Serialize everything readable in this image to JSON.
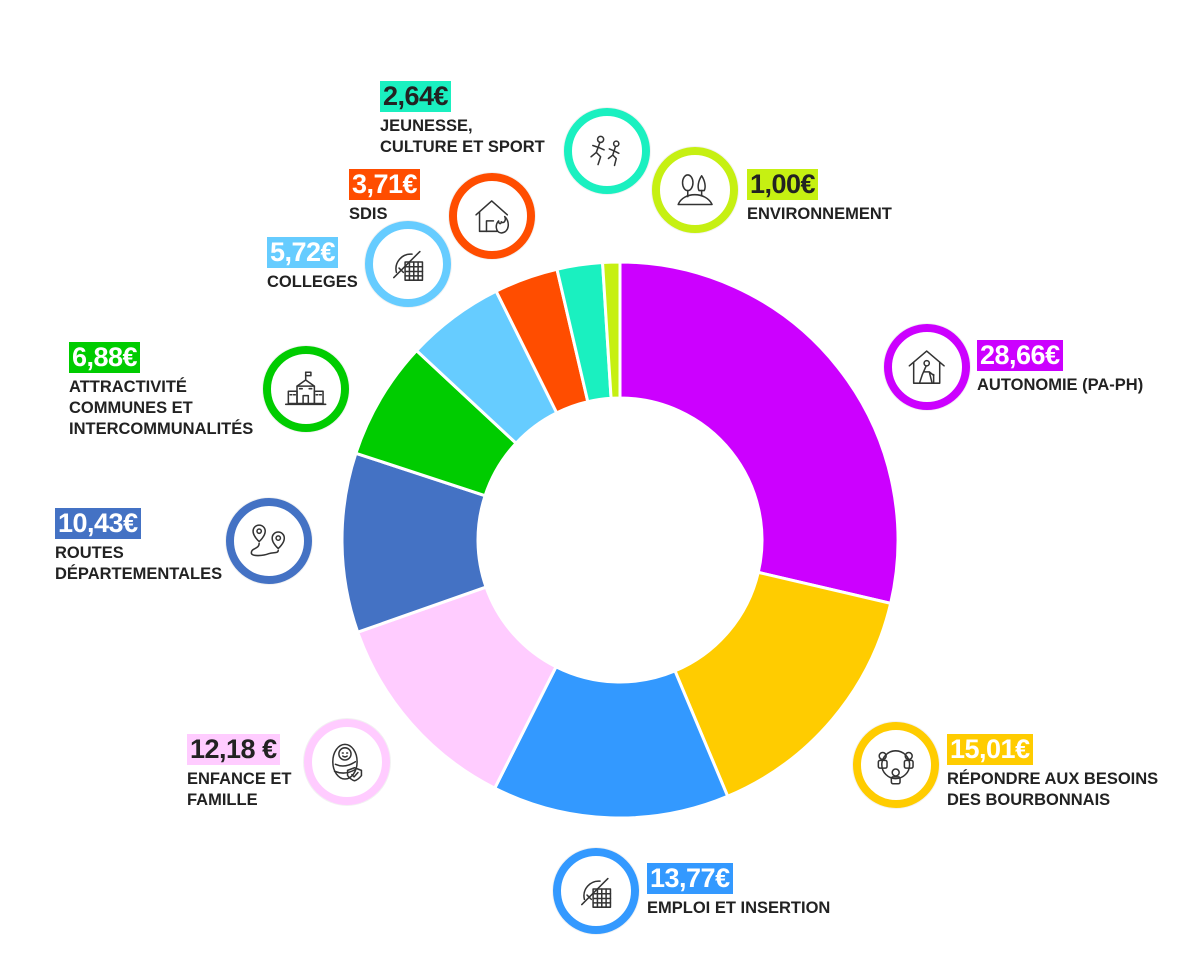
{
  "chart_data": {
    "type": "pie",
    "donut": true,
    "segments": [
      {
        "value": 28.66,
        "value_label": "28,66€",
        "label_lines": [
          "AUTONOMIE (PA-PH)"
        ],
        "color": "#CC00FF",
        "icon": "elderly-person-house-icon"
      },
      {
        "value": 15.01,
        "value_label": "15,01€",
        "label_lines": [
          "RÉPONDRE AUX BESOINS",
          "DES BOURBONNAIS"
        ],
        "color": "#FFCC00",
        "icon": "people-network-icon"
      },
      {
        "value": 13.77,
        "value_label": "13,77€",
        "label_lines": [
          "EMPLOI ET INSERTION"
        ],
        "color": "#3399FF",
        "icon": "drafting-tools-icon"
      },
      {
        "value": 12.18,
        "value_label": "12,18 €",
        "label_lines": [
          "ENFANCE ET",
          "FAMILLE"
        ],
        "color": "#FFCCFF",
        "icon": "swaddled-baby-icon"
      },
      {
        "value": 10.43,
        "value_label": "10,43€",
        "label_lines": [
          "ROUTES",
          "DÉPARTEMENTALES"
        ],
        "color": "#4472C4",
        "icon": "route-map-pin-icon"
      },
      {
        "value": 6.88,
        "value_label": "6,88€",
        "label_lines": [
          "ATTRACTIVITÉ",
          "COMMUNES ET",
          "INTERCOMMUNALITÉS"
        ],
        "color": "#00CC00",
        "icon": "town-hall-icon"
      },
      {
        "value": 5.72,
        "value_label": "5,72€",
        "label_lines": [
          "COLLEGES"
        ],
        "color": "#66CCFF",
        "icon": "drafting-tools-icon"
      },
      {
        "value": 3.71,
        "value_label": "3,71€",
        "label_lines": [
          "SDIS"
        ],
        "color": "#FF4D00",
        "icon": "house-fire-icon"
      },
      {
        "value": 2.64,
        "value_label": "2,64€",
        "label_lines": [
          "JEUNESSE,",
          "CULTURE ET SPORT"
        ],
        "color": "#1AF0C0",
        "icon": "runners-icon"
      },
      {
        "value": 1.0,
        "value_label": "1,00€",
        "label_lines": [
          "ENVIRONNEMENT"
        ],
        "color": "#C6F012",
        "icon": "trees-hill-icon"
      }
    ]
  }
}
